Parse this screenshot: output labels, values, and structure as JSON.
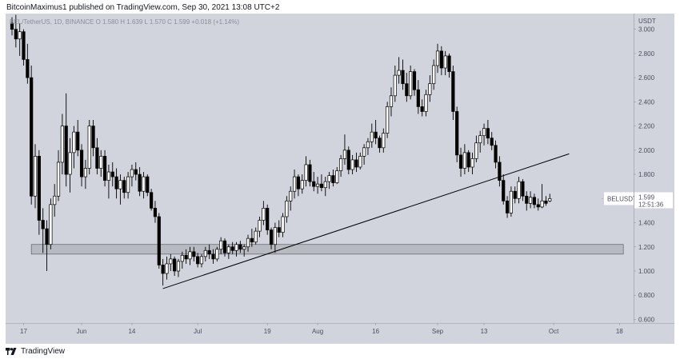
{
  "header": {
    "text": "BitcoinMaximus1 published on TradingView.com, Sep 30, 2021 13:08 UTC+2"
  },
  "footer": {
    "brand": "TradingView"
  },
  "colors": {
    "background": "#d1d4dc",
    "up": "#ffffff",
    "down": "#000000",
    "support_zone": "#b3b5bc",
    "trendline": "#000000",
    "text": "#131722"
  },
  "icons": {
    "logo": "tradingview-logo-icon"
  },
  "chart_data": {
    "type": "candlestick",
    "symbol_line": "BEL/TetherUS, 1D, BINANCE",
    "ohlc_legend": {
      "o_label": "O",
      "o": "1.580",
      "h_label": "H",
      "h": "1.639",
      "l_label": "L",
      "l": "1.570",
      "c_label": "C",
      "c": "1.599",
      "change": "+0.018 (+1.14%)"
    },
    "price_axis_label": "USDT",
    "price_label": {
      "symbol": "BELUSDT",
      "price": "1.599",
      "countdown": "12:51:36"
    },
    "y_ticks": [
      "3.000",
      "2.800",
      "2.600",
      "2.400",
      "2.200",
      "2.000",
      "1.800",
      "1.600",
      "1.400",
      "1.200",
      "1.000",
      "0.800",
      "0.600"
    ],
    "ylim": [
      0.57,
      3.13
    ],
    "x_ticks": [
      {
        "date": "2021-05-17",
        "label": "17"
      },
      {
        "date": "2021-06-01",
        "label": "Jun"
      },
      {
        "date": "2021-06-14",
        "label": "14"
      },
      {
        "date": "2021-07-01",
        "label": "Jul"
      },
      {
        "date": "2021-07-19",
        "label": "19"
      },
      {
        "date": "2021-08-01",
        "label": "Aug"
      },
      {
        "date": "2021-08-16",
        "label": "16"
      },
      {
        "date": "2021-09-01",
        "label": "Sep"
      },
      {
        "date": "2021-09-13",
        "label": "13"
      },
      {
        "date": "2021-10-01",
        "label": "Oct"
      },
      {
        "date": "2021-10-18",
        "label": "18"
      }
    ],
    "xlim": [
      "2021-05-14",
      "2021-10-20"
    ],
    "support_zone": {
      "from": "2021-05-19",
      "to": "2021-10-19",
      "low": 1.14,
      "high": 1.22
    },
    "trendline": {
      "start": [
        "2021-06-22",
        0.855
      ],
      "end": [
        "2021-10-05",
        1.97
      ]
    },
    "ohlc": [
      [
        "2021-05-14",
        3.05,
        3.1,
        2.95,
        3.0
      ],
      [
        "2021-05-15",
        3.0,
        3.12,
        2.85,
        2.92
      ],
      [
        "2021-05-16",
        2.92,
        3.05,
        2.78,
        2.98
      ],
      [
        "2021-05-17",
        2.98,
        3.0,
        2.7,
        2.75
      ],
      [
        "2021-05-18",
        2.75,
        2.88,
        2.55,
        2.6
      ],
      [
        "2021-05-19",
        2.6,
        2.7,
        1.55,
        1.62
      ],
      [
        "2021-05-20",
        1.62,
        2.05,
        1.52,
        1.95
      ],
      [
        "2021-05-21",
        1.95,
        2.0,
        1.3,
        1.42
      ],
      [
        "2021-05-22",
        1.42,
        1.52,
        1.15,
        1.35
      ],
      [
        "2021-05-23",
        1.35,
        1.42,
        1.0,
        1.22
      ],
      [
        "2021-05-24",
        1.22,
        1.6,
        1.18,
        1.55
      ],
      [
        "2021-05-25",
        1.55,
        1.72,
        1.45,
        1.62
      ],
      [
        "2021-05-26",
        1.62,
        2.0,
        1.58,
        1.9
      ],
      [
        "2021-05-27",
        1.9,
        2.3,
        1.8,
        2.2
      ],
      [
        "2021-05-28",
        2.2,
        2.47,
        1.7,
        1.8
      ],
      [
        "2021-05-29",
        1.8,
        2.1,
        1.65,
        1.98
      ],
      [
        "2021-05-30",
        1.98,
        2.2,
        1.85,
        2.15
      ],
      [
        "2021-05-31",
        2.15,
        2.25,
        1.95,
        2.0
      ],
      [
        "2021-06-01",
        2.0,
        2.05,
        1.7,
        1.78
      ],
      [
        "2021-06-02",
        1.78,
        1.92,
        1.68,
        1.85
      ],
      [
        "2021-06-03",
        1.85,
        2.25,
        1.8,
        2.2
      ],
      [
        "2021-06-04",
        2.2,
        2.25,
        1.95,
        2.02
      ],
      [
        "2021-06-05",
        2.02,
        2.1,
        1.8,
        1.85
      ],
      [
        "2021-06-06",
        1.85,
        2.0,
        1.78,
        1.95
      ],
      [
        "2021-06-07",
        1.95,
        2.0,
        1.7,
        1.75
      ],
      [
        "2021-06-08",
        1.75,
        1.88,
        1.6,
        1.82
      ],
      [
        "2021-06-09",
        1.82,
        1.9,
        1.7,
        1.78
      ],
      [
        "2021-06-10",
        1.78,
        1.85,
        1.6,
        1.68
      ],
      [
        "2021-06-11",
        1.68,
        1.8,
        1.55,
        1.75
      ],
      [
        "2021-06-12",
        1.75,
        1.78,
        1.6,
        1.65
      ],
      [
        "2021-06-13",
        1.65,
        1.82,
        1.6,
        1.78
      ],
      [
        "2021-06-14",
        1.78,
        1.88,
        1.7,
        1.84
      ],
      [
        "2021-06-15",
        1.84,
        1.9,
        1.75,
        1.8
      ],
      [
        "2021-06-16",
        1.8,
        1.86,
        1.62,
        1.66
      ],
      [
        "2021-06-17",
        1.66,
        1.82,
        1.6,
        1.78
      ],
      [
        "2021-06-18",
        1.78,
        1.8,
        1.62,
        1.65
      ],
      [
        "2021-06-19",
        1.65,
        1.68,
        1.5,
        1.52
      ],
      [
        "2021-06-20",
        1.52,
        1.58,
        1.4,
        1.45
      ],
      [
        "2021-06-21",
        1.45,
        1.48,
        1.02,
        1.05
      ],
      [
        "2021-06-22",
        1.05,
        1.1,
        0.88,
        0.98
      ],
      [
        "2021-06-23",
        0.98,
        1.12,
        0.93,
        1.06
      ],
      [
        "2021-06-24",
        1.06,
        1.14,
        1.0,
        1.1
      ],
      [
        "2021-06-25",
        1.1,
        1.12,
        0.96,
        1.0
      ],
      [
        "2021-06-26",
        1.0,
        1.1,
        0.95,
        1.08
      ],
      [
        "2021-06-27",
        1.08,
        1.16,
        1.02,
        1.13
      ],
      [
        "2021-06-28",
        1.13,
        1.18,
        1.06,
        1.1
      ],
      [
        "2021-06-29",
        1.1,
        1.2,
        1.05,
        1.16
      ],
      [
        "2021-06-30",
        1.16,
        1.2,
        1.08,
        1.12
      ],
      [
        "2021-07-01",
        1.12,
        1.15,
        1.03,
        1.06
      ],
      [
        "2021-07-02",
        1.06,
        1.14,
        1.03,
        1.12
      ],
      [
        "2021-07-03",
        1.12,
        1.2,
        1.08,
        1.17
      ],
      [
        "2021-07-04",
        1.17,
        1.22,
        1.1,
        1.14
      ],
      [
        "2021-07-05",
        1.14,
        1.18,
        1.06,
        1.1
      ],
      [
        "2021-07-06",
        1.1,
        1.2,
        1.08,
        1.18
      ],
      [
        "2021-07-07",
        1.18,
        1.28,
        1.14,
        1.25
      ],
      [
        "2021-07-08",
        1.25,
        1.27,
        1.12,
        1.15
      ],
      [
        "2021-07-09",
        1.15,
        1.22,
        1.1,
        1.2
      ],
      [
        "2021-07-10",
        1.2,
        1.24,
        1.14,
        1.17
      ],
      [
        "2021-07-11",
        1.17,
        1.24,
        1.12,
        1.22
      ],
      [
        "2021-07-12",
        1.22,
        1.25,
        1.15,
        1.18
      ],
      [
        "2021-07-13",
        1.18,
        1.22,
        1.12,
        1.2
      ],
      [
        "2021-07-14",
        1.2,
        1.3,
        1.16,
        1.27
      ],
      [
        "2021-07-15",
        1.27,
        1.35,
        1.2,
        1.24
      ],
      [
        "2021-07-16",
        1.24,
        1.36,
        1.22,
        1.33
      ],
      [
        "2021-07-17",
        1.33,
        1.45,
        1.28,
        1.42
      ],
      [
        "2021-07-18",
        1.42,
        1.58,
        1.38,
        1.52
      ],
      [
        "2021-07-19",
        1.52,
        1.55,
        1.3,
        1.34
      ],
      [
        "2021-07-20",
        1.34,
        1.36,
        1.18,
        1.22
      ],
      [
        "2021-07-21",
        1.22,
        1.4,
        1.15,
        1.36
      ],
      [
        "2021-07-22",
        1.36,
        1.42,
        1.28,
        1.32
      ],
      [
        "2021-07-23",
        1.32,
        1.48,
        1.28,
        1.45
      ],
      [
        "2021-07-24",
        1.45,
        1.62,
        1.4,
        1.58
      ],
      [
        "2021-07-25",
        1.58,
        1.7,
        1.5,
        1.66
      ],
      [
        "2021-07-26",
        1.66,
        1.84,
        1.6,
        1.78
      ],
      [
        "2021-07-27",
        1.78,
        1.8,
        1.62,
        1.68
      ],
      [
        "2021-07-28",
        1.68,
        1.8,
        1.64,
        1.75
      ],
      [
        "2021-07-29",
        1.75,
        1.95,
        1.7,
        1.88
      ],
      [
        "2021-07-30",
        1.88,
        1.92,
        1.7,
        1.74
      ],
      [
        "2021-07-31",
        1.74,
        1.82,
        1.66,
        1.7
      ],
      [
        "2021-08-01",
        1.7,
        1.78,
        1.64,
        1.72
      ],
      [
        "2021-08-02",
        1.72,
        1.8,
        1.66,
        1.69
      ],
      [
        "2021-08-03",
        1.69,
        1.78,
        1.62,
        1.74
      ],
      [
        "2021-08-04",
        1.74,
        1.82,
        1.68,
        1.79
      ],
      [
        "2021-08-05",
        1.79,
        1.84,
        1.7,
        1.73
      ],
      [
        "2021-08-06",
        1.73,
        1.86,
        1.72,
        1.83
      ],
      [
        "2021-08-07",
        1.83,
        1.96,
        1.78,
        1.93
      ],
      [
        "2021-08-08",
        1.93,
        2.13,
        1.88,
        2.0
      ],
      [
        "2021-08-09",
        2.0,
        2.03,
        1.8,
        1.84
      ],
      [
        "2021-08-10",
        1.84,
        1.96,
        1.8,
        1.92
      ],
      [
        "2021-08-11",
        1.92,
        1.98,
        1.82,
        1.86
      ],
      [
        "2021-08-12",
        1.86,
        1.98,
        1.84,
        1.95
      ],
      [
        "2021-08-13",
        1.95,
        2.05,
        1.88,
        2.02
      ],
      [
        "2021-08-14",
        2.02,
        2.1,
        1.96,
        2.07
      ],
      [
        "2021-08-15",
        2.07,
        2.22,
        2.02,
        2.15
      ],
      [
        "2021-08-16",
        2.15,
        2.25,
        2.05,
        2.1
      ],
      [
        "2021-08-17",
        2.1,
        2.12,
        1.98,
        2.02
      ],
      [
        "2021-08-18",
        2.02,
        2.18,
        1.98,
        2.14
      ],
      [
        "2021-08-19",
        2.14,
        2.4,
        2.1,
        2.36
      ],
      [
        "2021-08-20",
        2.36,
        2.52,
        2.28,
        2.45
      ],
      [
        "2021-08-21",
        2.45,
        2.7,
        2.4,
        2.62
      ],
      [
        "2021-08-22",
        2.62,
        2.77,
        2.55,
        2.66
      ],
      [
        "2021-08-23",
        2.66,
        2.75,
        2.5,
        2.55
      ],
      [
        "2021-08-24",
        2.55,
        2.64,
        2.4,
        2.45
      ],
      [
        "2021-08-25",
        2.45,
        2.7,
        2.42,
        2.65
      ],
      [
        "2021-08-26",
        2.65,
        2.67,
        2.45,
        2.5
      ],
      [
        "2021-08-27",
        2.5,
        2.58,
        2.3,
        2.36
      ],
      [
        "2021-08-28",
        2.36,
        2.42,
        2.28,
        2.32
      ],
      [
        "2021-08-29",
        2.32,
        2.5,
        2.28,
        2.46
      ],
      [
        "2021-08-30",
        2.46,
        2.62,
        2.4,
        2.55
      ],
      [
        "2021-08-31",
        2.55,
        2.75,
        2.5,
        2.7
      ],
      [
        "2021-09-01",
        2.7,
        2.88,
        2.64,
        2.82
      ],
      [
        "2021-09-02",
        2.82,
        2.86,
        2.62,
        2.68
      ],
      [
        "2021-09-03",
        2.68,
        2.82,
        2.62,
        2.78
      ],
      [
        "2021-09-04",
        2.78,
        2.8,
        2.6,
        2.65
      ],
      [
        "2021-09-05",
        2.65,
        2.7,
        2.25,
        2.32
      ],
      [
        "2021-09-06",
        2.32,
        2.36,
        1.9,
        1.96
      ],
      [
        "2021-09-07",
        1.96,
        2.02,
        1.78,
        1.85
      ],
      [
        "2021-09-08",
        1.85,
        2.05,
        1.8,
        1.98
      ],
      [
        "2021-09-09",
        1.98,
        2.0,
        1.82,
        1.86
      ],
      [
        "2021-09-10",
        1.86,
        1.98,
        1.8,
        1.93
      ],
      [
        "2021-09-11",
        1.93,
        2.12,
        1.9,
        2.06
      ],
      [
        "2021-09-12",
        2.06,
        2.16,
        1.98,
        2.12
      ],
      [
        "2021-09-13",
        2.12,
        2.22,
        2.04,
        2.18
      ],
      [
        "2021-09-14",
        2.18,
        2.25,
        2.05,
        2.1
      ],
      [
        "2021-09-15",
        2.1,
        2.15,
        2.0,
        2.04
      ],
      [
        "2021-09-16",
        2.04,
        2.08,
        1.85,
        1.9
      ],
      [
        "2021-09-17",
        1.9,
        1.95,
        1.7,
        1.75
      ],
      [
        "2021-09-18",
        1.75,
        1.8,
        1.55,
        1.58
      ],
      [
        "2021-09-19",
        1.58,
        1.62,
        1.44,
        1.48
      ],
      [
        "2021-09-20",
        1.48,
        1.7,
        1.45,
        1.66
      ],
      [
        "2021-09-21",
        1.66,
        1.7,
        1.56,
        1.6
      ],
      [
        "2021-09-22",
        1.6,
        1.78,
        1.56,
        1.74
      ],
      [
        "2021-09-23",
        1.74,
        1.76,
        1.58,
        1.62
      ],
      [
        "2021-09-24",
        1.62,
        1.66,
        1.5,
        1.56
      ],
      [
        "2021-09-25",
        1.56,
        1.66,
        1.52,
        1.61
      ],
      [
        "2021-09-26",
        1.61,
        1.64,
        1.52,
        1.55
      ],
      [
        "2021-09-27",
        1.55,
        1.6,
        1.5,
        1.53
      ],
      [
        "2021-09-28",
        1.53,
        1.72,
        1.52,
        1.58
      ],
      [
        "2021-09-29",
        1.58,
        1.62,
        1.54,
        1.56
      ],
      [
        "2021-09-30",
        1.58,
        1.639,
        1.57,
        1.599
      ]
    ]
  }
}
